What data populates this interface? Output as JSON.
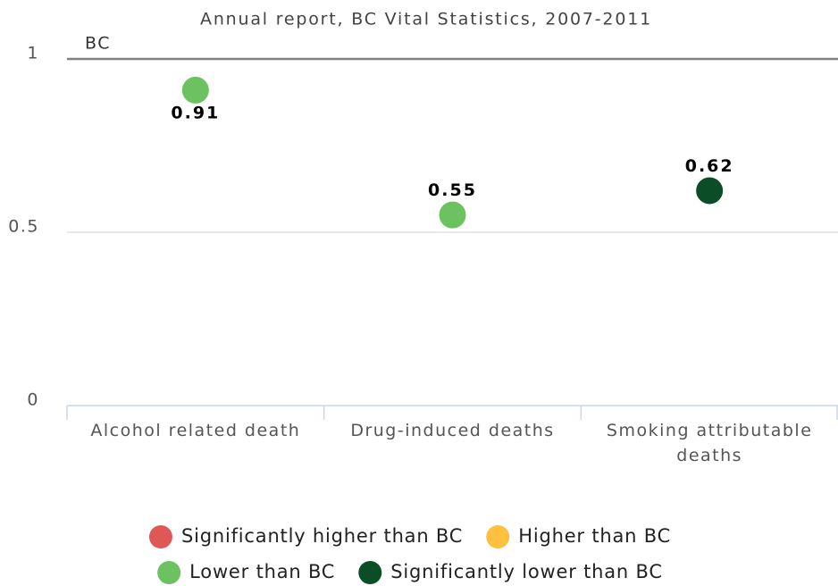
{
  "chart_data": {
    "type": "scatter",
    "title": "Annual report, BC Vital Statistics, 2007-2011",
    "categories": [
      "Alcohol related death",
      "Drug-induced deaths",
      "Smoking attributable deaths"
    ],
    "series": [
      {
        "name": "Significantly higher than BC",
        "color": "#e05757",
        "values": [
          null,
          null,
          null
        ]
      },
      {
        "name": "Higher than BC",
        "color": "#fdc13f",
        "values": [
          null,
          null,
          null
        ]
      },
      {
        "name": "Lower than BC",
        "color": "#6cc160",
        "values": [
          0.91,
          0.55,
          null
        ]
      },
      {
        "name": "Significantly lower than BC",
        "color": "#0b4d26",
        "values": [
          null,
          null,
          0.62
        ]
      }
    ],
    "reference_line": {
      "value": 1,
      "label": "BC"
    },
    "ylim": [
      0,
      1
    ],
    "yticks": [
      0,
      0.5,
      1
    ],
    "grid": true
  }
}
